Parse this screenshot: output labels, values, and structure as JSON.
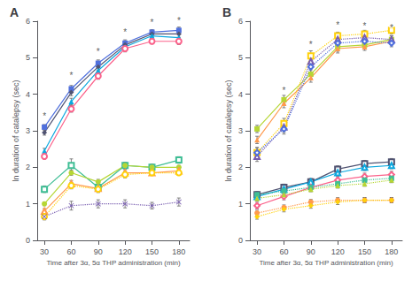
{
  "chart_data": [
    {
      "type": "line",
      "title": "A",
      "xlabel": "Time after 3α, 5α THP administration (min)",
      "ylabel": "ln duration of catalepsy (sec)",
      "x": [
        30,
        60,
        90,
        120,
        150,
        180
      ],
      "xlim": [
        22,
        192
      ],
      "xticks": [
        30,
        60,
        90,
        120,
        150,
        180
      ],
      "ylim": [
        0,
        6
      ],
      "yticks": [
        0,
        1,
        2,
        3,
        4,
        5,
        6
      ],
      "grid": false,
      "series": [
        {
          "marker": "square",
          "line_style": "solid",
          "values": [
            3.1,
            4.15,
            4.85,
            5.4,
            5.7,
            5.75
          ],
          "errors": [
            0.07,
            0.09,
            0.09,
            0.09,
            0.07,
            0.09
          ]
        },
        {
          "marker": "diamond",
          "line_style": "solid",
          "values": [
            2.95,
            4.05,
            4.75,
            5.35,
            5.65,
            5.65
          ],
          "errors": [
            0.07,
            0.09,
            0.09,
            0.09,
            0.07,
            0.09
          ]
        },
        {
          "marker": "triangle",
          "line_style": "solid",
          "values": [
            2.45,
            3.8,
            4.65,
            5.3,
            5.6,
            5.55
          ],
          "errors": [
            0.07,
            0.09,
            0.09,
            0.09,
            0.07,
            0.09
          ]
        },
        {
          "marker": "circle-open",
          "line_style": "solid",
          "values": [
            2.3,
            3.6,
            4.5,
            5.25,
            5.45,
            5.45
          ],
          "errors": [
            0.07,
            0.09,
            0.09,
            0.09,
            0.07,
            0.09
          ]
        },
        {
          "marker": "square-open",
          "line_style": "solid",
          "values": [
            1.4,
            2.05,
            1.45,
            2.05,
            2.0,
            2.2
          ],
          "errors": [
            0.09,
            0.18,
            0.09,
            0.09,
            0.09,
            0.09
          ]
        },
        {
          "marker": "circle",
          "line_style": "solid",
          "values": [
            1.0,
            1.85,
            1.6,
            2.05,
            2.0,
            2.0
          ],
          "errors": [
            0.05,
            0.07,
            0.07,
            0.07,
            0.05,
            0.05
          ]
        },
        {
          "marker": "triangle-open",
          "line_style": "solid",
          "values": [
            0.8,
            1.55,
            1.42,
            1.85,
            1.85,
            1.9
          ],
          "errors": [
            0.07,
            0.09,
            0.09,
            0.09,
            0.07,
            0.07
          ]
        },
        {
          "marker": "circle-open",
          "line_style": "dotted",
          "values": [
            0.65,
            1.5,
            1.4,
            1.8,
            1.85,
            1.85
          ],
          "errors": [
            0.07,
            0.09,
            0.09,
            0.09,
            0.07,
            0.07
          ]
        },
        {
          "marker": "x",
          "line_style": "dotted",
          "values": [
            0.65,
            0.95,
            1.0,
            1.0,
            0.95,
            1.05
          ],
          "errors": [
            0.09,
            0.12,
            0.11,
            0.11,
            0.09,
            0.11
          ]
        }
      ],
      "annotations": [
        {
          "text": "*",
          "x": 30,
          "y": 3.28
        },
        {
          "text": "*",
          "x": 60,
          "y": 4.38
        },
        {
          "text": "*",
          "x": 90,
          "y": 5.05
        },
        {
          "text": "*",
          "x": 120,
          "y": 5.58
        },
        {
          "text": "*",
          "x": 150,
          "y": 5.85
        },
        {
          "text": "*",
          "x": 180,
          "y": 5.9
        }
      ]
    },
    {
      "type": "line",
      "title": "B",
      "xlabel": "Time after 3α, 5α THP administration (min)",
      "ylabel": "ln duration of catalepsy (sec)",
      "x": [
        30,
        60,
        90,
        120,
        150,
        180
      ],
      "xlim": [
        22,
        192
      ],
      "xticks": [
        30,
        60,
        90,
        120,
        150,
        180
      ],
      "ylim": [
        0,
        6
      ],
      "yticks": [
        0,
        1,
        2,
        3,
        4,
        5,
        6
      ],
      "grid": false,
      "series": [
        {
          "marker": "square",
          "line_style": "solid",
          "values": [
            3.05,
            3.85,
            4.55,
            5.3,
            5.35,
            5.5
          ],
          "errors": [
            0.1,
            0.12,
            0.12,
            0.12,
            0.1,
            0.1
          ]
        },
        {
          "marker": "triangle",
          "line_style": "solid",
          "values": [
            2.75,
            3.75,
            4.45,
            5.25,
            5.3,
            5.45
          ],
          "errors": [
            0.1,
            0.12,
            0.12,
            0.12,
            0.1,
            0.1
          ]
        },
        {
          "marker": "square-open",
          "line_style": "dotted",
          "values": [
            2.4,
            3.2,
            5.05,
            5.6,
            5.65,
            5.75
          ],
          "errors": [
            0.14,
            0.14,
            0.14,
            0.1,
            0.1,
            0.1
          ]
        },
        {
          "marker": "triangle-open",
          "line_style": "dotted",
          "values": [
            2.3,
            3.1,
            4.9,
            5.5,
            5.55,
            5.5
          ],
          "errors": [
            0.14,
            0.14,
            0.14,
            0.1,
            0.1,
            0.1
          ]
        },
        {
          "marker": "diamond-open",
          "line_style": "dotted",
          "values": [
            2.4,
            3.05,
            4.75,
            5.4,
            5.45,
            5.4
          ],
          "errors": [
            0.14,
            0.14,
            0.14,
            0.1,
            0.1,
            0.1
          ]
        },
        {
          "marker": "square-open",
          "line_style": "solid",
          "values": [
            1.25,
            1.45,
            1.6,
            1.95,
            2.1,
            2.15
          ],
          "errors": [
            0.09,
            0.09,
            0.09,
            0.09,
            0.09,
            0.09
          ]
        },
        {
          "marker": "triangle-open",
          "line_style": "solid",
          "values": [
            1.2,
            1.4,
            1.6,
            1.85,
            2.0,
            2.05
          ],
          "errors": [
            0.09,
            0.09,
            0.09,
            0.09,
            0.09,
            0.09
          ]
        },
        {
          "marker": "diamond-open",
          "line_style": "solid",
          "values": [
            0.95,
            1.2,
            1.45,
            1.65,
            1.75,
            1.8
          ],
          "errors": [
            0.09,
            0.09,
            0.09,
            0.09,
            0.09,
            0.09
          ]
        },
        {
          "marker": "square",
          "line_style": "dotted",
          "values": [
            1.25,
            1.35,
            1.45,
            1.55,
            1.65,
            1.7
          ],
          "errors": [
            0.07,
            0.07,
            0.07,
            0.07,
            0.07,
            0.07
          ]
        },
        {
          "marker": "triangle",
          "line_style": "dotted",
          "values": [
            1.15,
            1.25,
            1.4,
            1.5,
            1.55,
            1.65
          ],
          "errors": [
            0.07,
            0.07,
            0.07,
            0.07,
            0.07,
            0.07
          ]
        },
        {
          "marker": "circle",
          "line_style": "dotted",
          "values": [
            0.75,
            0.9,
            1.05,
            1.1,
            1.1,
            1.1
          ],
          "errors": [
            0.07,
            0.07,
            0.07,
            0.07,
            0.07,
            0.07
          ]
        },
        {
          "marker": "diamond",
          "line_style": "dotted",
          "values": [
            0.65,
            0.85,
            0.95,
            1.05,
            1.1,
            1.1
          ],
          "errors": [
            0.07,
            0.07,
            0.07,
            0.07,
            0.07,
            0.07
          ]
        }
      ],
      "annotations": [
        {
          "text": "*",
          "x": 60,
          "y": 3.98
        },
        {
          "text": "*",
          "x": 90,
          "y": 5.25
        },
        {
          "text": "*",
          "x": 120,
          "y": 5.78
        },
        {
          "text": "*",
          "x": 150,
          "y": 5.75
        },
        {
          "text": "*",
          "x": 180,
          "y": 5.7
        }
      ]
    }
  ]
}
